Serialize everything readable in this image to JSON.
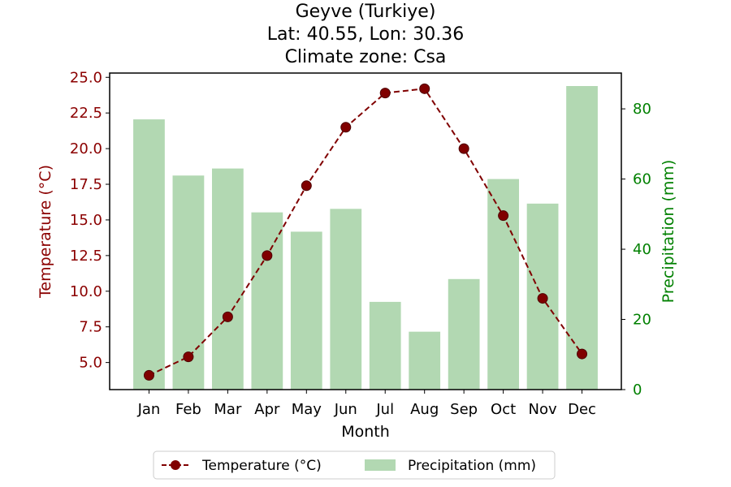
{
  "chart_data": {
    "type": "bar+line",
    "title_lines": [
      "Geyve (Turkiye)",
      "Lat: 40.55, Lon: 30.36",
      "Climate zone: Csa"
    ],
    "categories": [
      "Jan",
      "Feb",
      "Mar",
      "Apr",
      "May",
      "Jun",
      "Jul",
      "Aug",
      "Sep",
      "Oct",
      "Nov",
      "Dec"
    ],
    "xlabel": "Month",
    "y_left": {
      "label": "Temperature (°C)",
      "range": [
        3.1,
        25.3
      ],
      "ticks": [
        "5.0",
        "7.5",
        "10.0",
        "12.5",
        "15.0",
        "17.5",
        "20.0",
        "22.5",
        "25.0"
      ],
      "color": "#8b0000"
    },
    "y_right": {
      "label": "Precipitation (mm)",
      "range": [
        0,
        90.2
      ],
      "ticks": [
        "0",
        "20",
        "40",
        "60",
        "80"
      ],
      "color": "#008000"
    },
    "series": [
      {
        "name": "Temperature (°C)",
        "kind": "line",
        "axis": "left",
        "color": "#800000",
        "values": [
          4.1,
          5.4,
          8.2,
          12.5,
          17.4,
          21.5,
          23.9,
          24.2,
          20.0,
          15.3,
          9.5,
          5.6
        ]
      },
      {
        "name": "Precipitation (mm)",
        "kind": "bar",
        "axis": "right",
        "color": "#b2d8b2",
        "values": [
          77.0,
          61.0,
          63.0,
          50.5,
          45.0,
          51.5,
          25.0,
          16.5,
          31.5,
          60.0,
          53.0,
          86.5
        ]
      }
    ],
    "legend": {
      "placement": "bottom-center",
      "items": [
        "Temperature (°C)",
        "Precipitation (mm)"
      ]
    }
  }
}
